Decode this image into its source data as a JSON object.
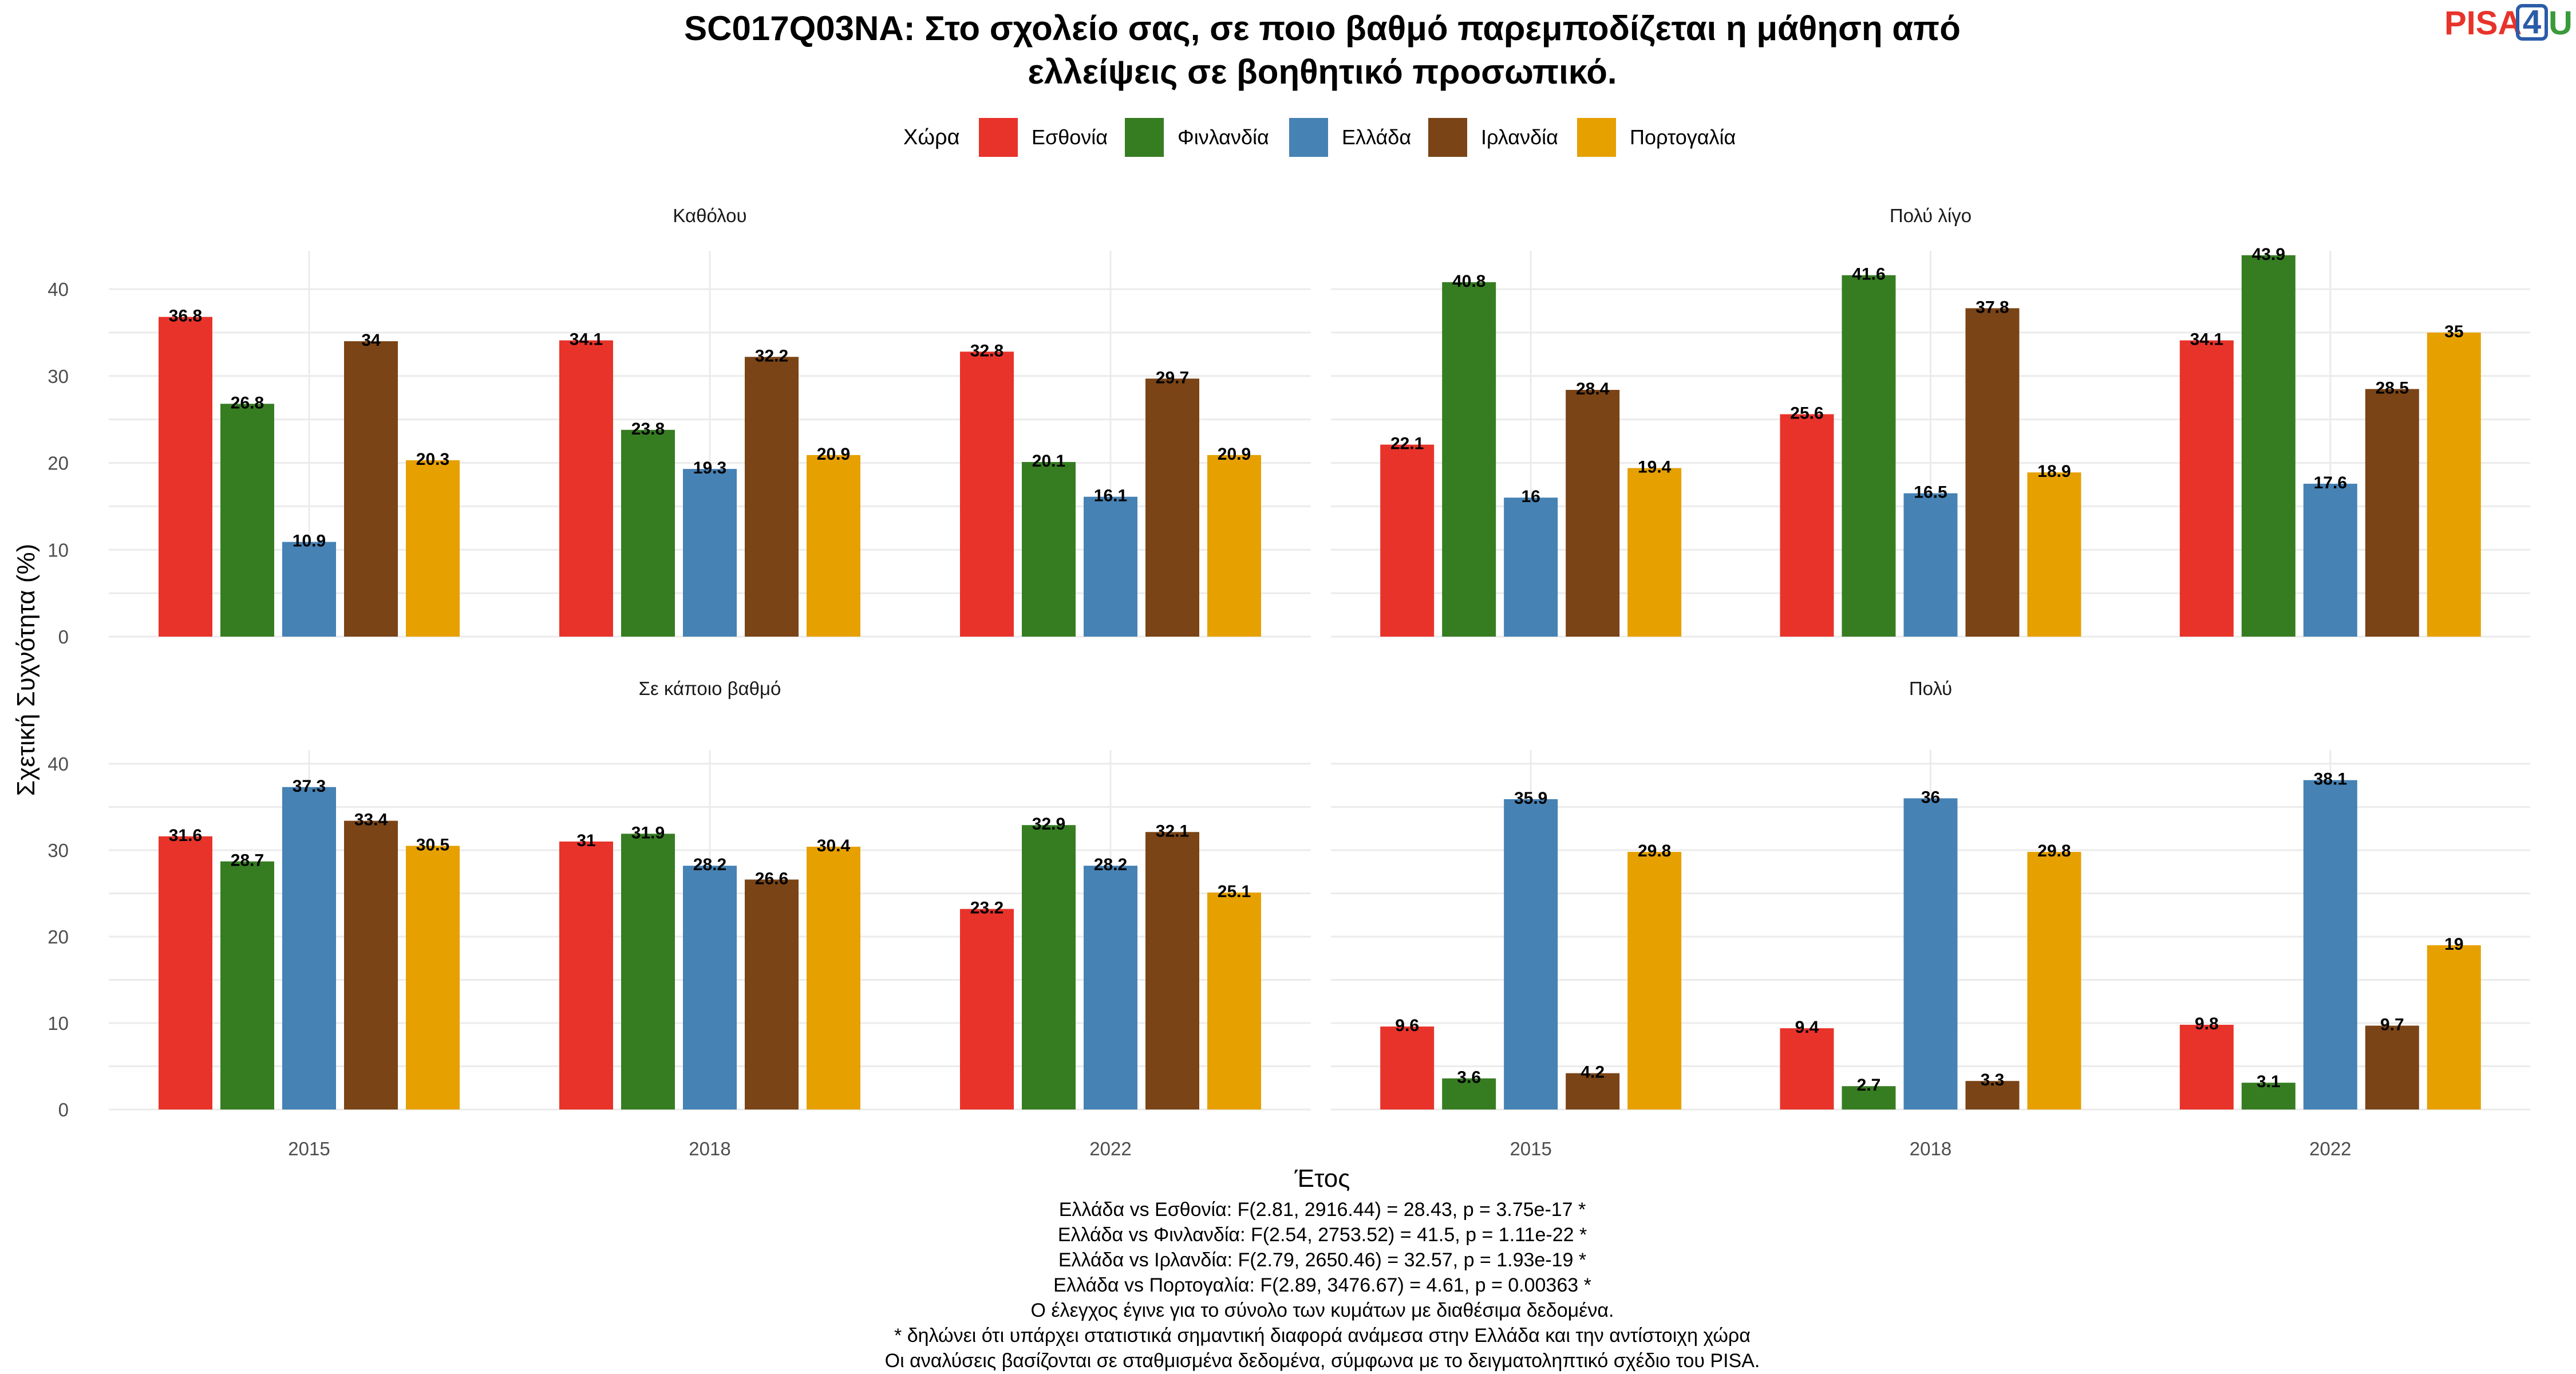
{
  "title_lines": [
    "SC017Q03NA: Στο σχολείο σας, σε ποιο βαθμό παρεμποδίζεται η μάθηση από",
    "ελλείψεις σε βοηθητικό προσωπικό."
  ],
  "logo": {
    "text": "PISA",
    "box_digit": "4",
    "suffix": "U",
    "colors": {
      "pisa": "#e8332a",
      "box": "#2a5ca8",
      "u": "#3a9a3a"
    }
  },
  "legend": {
    "title": "Χώρα",
    "items": [
      {
        "label": "Εσθονία",
        "color": "#e8332a"
      },
      {
        "label": "Φινλανδία",
        "color": "#367d22"
      },
      {
        "label": "Ελλάδα",
        "color": "#4682b4"
      },
      {
        "label": "Ιρλανδία",
        "color": "#7a4416"
      },
      {
        "label": "Πορτογαλία",
        "color": "#e6a000"
      }
    ]
  },
  "chart_data": {
    "type": "bar",
    "xlabel": "Έτος",
    "ylabel": "Σχετική Συχνότητα (%)",
    "categories": [
      "2015",
      "2018",
      "2022"
    ],
    "ylim": [
      0,
      45
    ],
    "yticks": [
      0,
      10,
      20,
      30,
      40
    ],
    "series_names": [
      "Εσθονία",
      "Φινλανδία",
      "Ελλάδα",
      "Ιρλανδία",
      "Πορτογαλία"
    ],
    "facets": [
      {
        "label": "Καθόλου",
        "values": [
          [
            36.8,
            26.8,
            10.9,
            34,
            20.3
          ],
          [
            34.1,
            23.8,
            19.3,
            32.2,
            20.9
          ],
          [
            32.8,
            20.1,
            16.1,
            29.7,
            20.9
          ]
        ]
      },
      {
        "label": "Πολύ λίγο",
        "values": [
          [
            22.1,
            40.8,
            16,
            28.4,
            19.4
          ],
          [
            25.6,
            41.6,
            16.5,
            37.8,
            18.9
          ],
          [
            34.1,
            43.9,
            17.6,
            28.5,
            35
          ]
        ]
      },
      {
        "label": "Σε κάποιο βαθμό",
        "values": [
          [
            31.6,
            28.7,
            37.3,
            33.4,
            30.5
          ],
          [
            31,
            31.9,
            28.2,
            26.6,
            30.4
          ],
          [
            23.2,
            32.9,
            28.2,
            32.1,
            25.1
          ]
        ]
      },
      {
        "label": "Πολύ",
        "values": [
          [
            9.6,
            3.6,
            35.9,
            4.2,
            29.8
          ],
          [
            9.4,
            2.7,
            36,
            3.3,
            29.8
          ],
          [
            9.8,
            3.1,
            38.1,
            9.7,
            19
          ]
        ]
      }
    ],
    "grid": true,
    "legend_position": "top"
  },
  "caption_lines": [
    "Ελλάδα vs Εσθονία: F(2.81, 2916.44) = 28.43, p = 3.75e-17 *",
    "Ελλάδα vs Φινλανδία: F(2.54, 2753.52) = 41.5, p = 1.11e-22 *",
    "Ελλάδα vs Ιρλανδία: F(2.79, 2650.46) = 32.57, p = 1.93e-19 *",
    "Ελλάδα vs Πορτογαλία: F(2.89, 3476.67) = 4.61, p = 0.00363 *",
    "Ο έλεγχος έγινε για το σύνολο των κυμάτων με διαθέσιμα δεδομένα.",
    "* δηλώνει ότι υπάρχει στατιστικά σημαντική διαφορά ανάμεσα στην Ελλάδα και την αντίστοιχη χώρα",
    "Οι αναλύσεις βασίζονται σε σταθμισμένα δεδομένα, σύμφωνα με το δειγματοληπτικό σχέδιο του PISA."
  ]
}
